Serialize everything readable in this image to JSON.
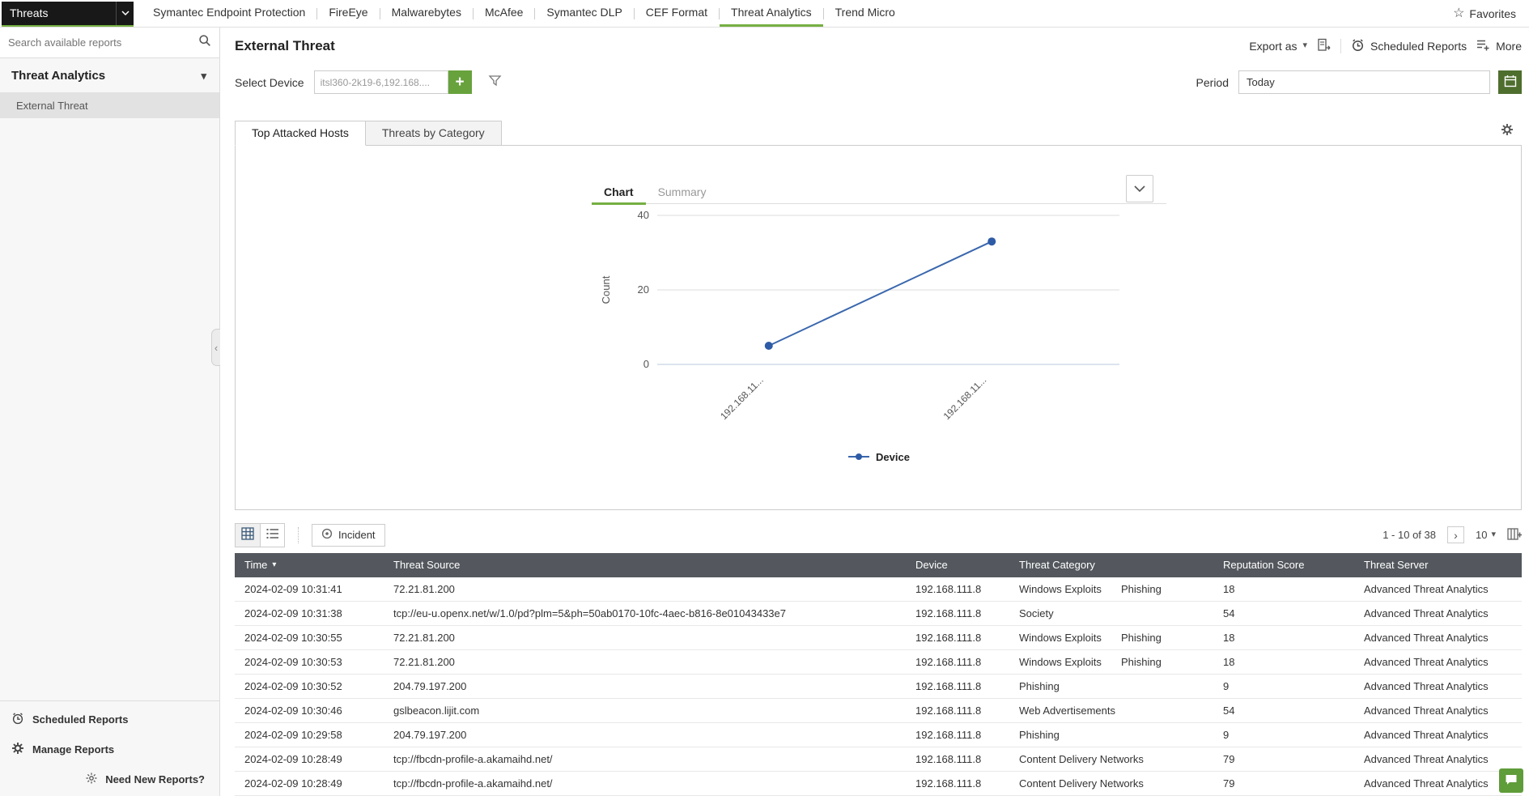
{
  "icons": {
    "caret_down": "▾",
    "star": "☆",
    "next_page": "›",
    "collapse": "‹",
    "plus": "+"
  },
  "topnav": {
    "module_select_value": "Threats",
    "items": [
      "Symantec Endpoint Protection",
      "FireEye",
      "Malwarebytes",
      "McAfee",
      "Symantec DLP",
      "CEF Format",
      "Threat Analytics",
      "Trend Micro"
    ],
    "favorites_label": "Favorites"
  },
  "sidebar": {
    "search_placeholder": "Search available reports",
    "section_title": "Threat Analytics",
    "items": [
      {
        "label": "External Threat"
      }
    ],
    "footer": {
      "scheduled_reports": "Scheduled Reports",
      "manage_reports": "Manage Reports",
      "need_new_reports": "Need New Reports?"
    }
  },
  "header": {
    "title": "External Threat",
    "export_label": "Export as",
    "scheduled_reports_label": "Scheduled Reports",
    "more_label": "More"
  },
  "filters": {
    "select_device_label": "Select Device",
    "device_value": "itsl360-2k19-6,192.168....",
    "period_label": "Period",
    "period_value": "Today"
  },
  "panel_tabs": [
    {
      "label": "Top Attacked Hosts"
    },
    {
      "label": "Threats by Category"
    }
  ],
  "chart": {
    "tabs": [
      "Chart",
      "Summary"
    ],
    "chart_data": {
      "type": "line",
      "categories": [
        "192.168.11...",
        "192.168.11..."
      ],
      "series": [
        {
          "name": "Device",
          "values": [
            5,
            33
          ]
        }
      ],
      "title": "",
      "xlabel": "",
      "ylabel": "Count",
      "ylim": [
        0,
        40
      ],
      "yticks": [
        0,
        20,
        40
      ],
      "grid": true,
      "legend_position": "bottom",
      "line_color": "#3a67ad"
    }
  },
  "table": {
    "toolbar": {
      "incident_label": "Incident"
    },
    "pagination": {
      "range_text": "1 - 10 of 38",
      "page_size": "10"
    },
    "columns": [
      "Time",
      "Threat Source",
      "Device",
      "Threat Category",
      "Reputation Score",
      "Threat Server"
    ],
    "rows": [
      {
        "time": "2024-02-09 10:31:41",
        "source": "72.21.81.200",
        "device": "192.168.111.8",
        "category": "Windows Exploits",
        "category2": "Phishing",
        "score": "18",
        "server": "Advanced Threat Analytics"
      },
      {
        "time": "2024-02-09 10:31:38",
        "source": "tcp://eu-u.openx.net/w/1.0/pd?plm=5&ph=50ab0170-10fc-4aec-b816-8e01043433e7",
        "device": "192.168.111.8",
        "category": "Society",
        "score": "54",
        "server": "Advanced Threat Analytics"
      },
      {
        "time": "2024-02-09 10:30:55",
        "source": "72.21.81.200",
        "device": "192.168.111.8",
        "category": "Windows Exploits",
        "category2": "Phishing",
        "score": "18",
        "server": "Advanced Threat Analytics"
      },
      {
        "time": "2024-02-09 10:30:53",
        "source": "72.21.81.200",
        "device": "192.168.111.8",
        "category": "Windows Exploits",
        "category2": "Phishing",
        "score": "18",
        "server": "Advanced Threat Analytics"
      },
      {
        "time": "2024-02-09 10:30:52",
        "source": "204.79.197.200",
        "device": "192.168.111.8",
        "category": "Phishing",
        "score": "9",
        "server": "Advanced Threat Analytics"
      },
      {
        "time": "2024-02-09 10:30:46",
        "source": "gslbeacon.lijit.com",
        "device": "192.168.111.8",
        "category": "Web Advertisements",
        "score": "54",
        "server": "Advanced Threat Analytics"
      },
      {
        "time": "2024-02-09 10:29:58",
        "source": "204.79.197.200",
        "device": "192.168.111.8",
        "category": "Phishing",
        "score": "9",
        "server": "Advanced Threat Analytics"
      },
      {
        "time": "2024-02-09 10:28:49",
        "source": "tcp://fbcdn-profile-a.akamaihd.net/",
        "device": "192.168.111.8",
        "category": "Content Delivery Networks",
        "score": "79",
        "server": "Advanced Threat Analytics"
      },
      {
        "time": "2024-02-09 10:28:49",
        "source": "tcp://fbcdn-profile-a.akamaihd.net/",
        "device": "192.168.111.8",
        "category": "Content Delivery Networks",
        "score": "79",
        "server": "Advanced Threat Analytics"
      }
    ]
  }
}
